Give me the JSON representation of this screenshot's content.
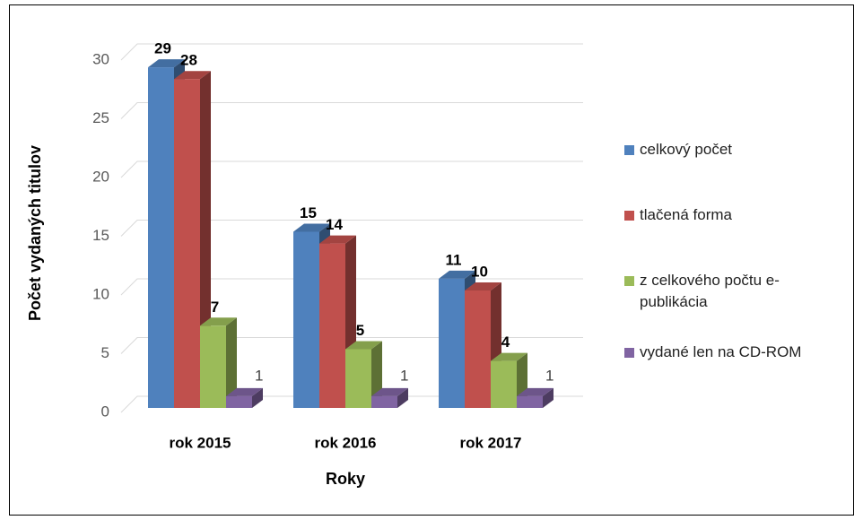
{
  "chart_data": {
    "type": "bar3d",
    "y_label": "Počet vydaných titulov",
    "x_label": "Roky",
    "categories": [
      "rok 2015",
      "rok 2016",
      "rok 2017"
    ],
    "series": [
      {
        "name": "celkový počet",
        "color": "#4f81bd",
        "values": [
          29,
          15,
          11
        ]
      },
      {
        "name": "tlačená forma",
        "color": "#c0504d",
        "values": [
          28,
          14,
          10
        ]
      },
      {
        "name": "z celkového počtu e-publikácia",
        "color": "#9bbb59",
        "values": [
          7,
          5,
          4
        ]
      },
      {
        "name": "vydané len na CD-ROM",
        "color": "#8064a2",
        "values": [
          1,
          1,
          1
        ]
      }
    ],
    "ylim": [
      0,
      30
    ],
    "yticks": [
      0,
      5,
      10,
      15,
      20,
      25,
      30
    ],
    "grid": true,
    "legend": "right"
  }
}
